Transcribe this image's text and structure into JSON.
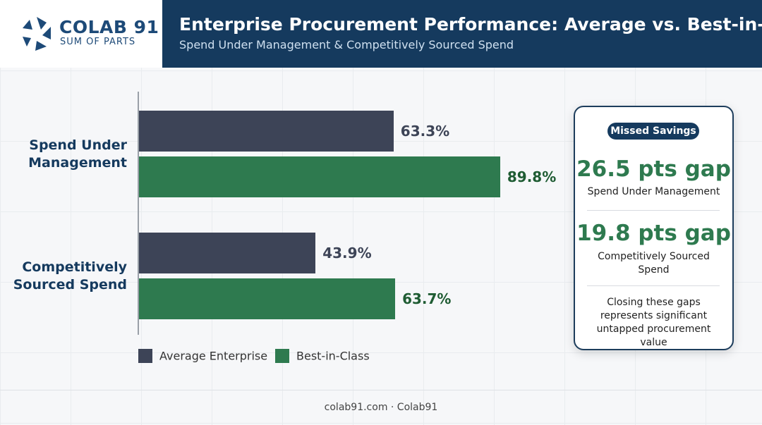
{
  "header": {
    "logo": "COLAB 91",
    "tagline": "SUM OF PARTS"
  },
  "chart_data": {
    "type": "bar",
    "orientation": "horizontal",
    "title": "Enterprise Procurement Performance: Average vs. Best-in-Class",
    "subtitle": "Spend Under Management & Competitively Sourced Spend",
    "categories": [
      "Spend Under Management",
      "Competitively Sourced Spend"
    ],
    "series": [
      {
        "name": "Average Enterprise",
        "color": "#3d4457",
        "values": [
          63.3,
          43.9
        ],
        "value_labels": [
          "63.3%",
          "43.9%"
        ]
      },
      {
        "name": "Best-in-Class",
        "color": "#2e7a4f",
        "values": [
          89.8,
          63.7
        ],
        "value_labels": [
          "89.8%",
          "63.7%"
        ]
      }
    ]
  },
  "callout": {
    "badge": "Missed Savings",
    "items": [
      {
        "headline": "26.5 pts gap",
        "label": "Spend Under Management"
      },
      {
        "headline": "19.8 pts gap",
        "label": "Competitively Sourced Spend"
      }
    ],
    "note": "Closing these gaps represents significant untapped procurement value"
  },
  "footer": "colab91.com · Colab91"
}
